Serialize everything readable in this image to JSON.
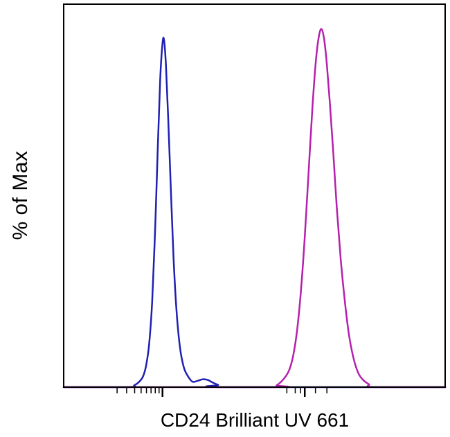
{
  "figure": {
    "background": "#ffffff",
    "axis_color": "#000000"
  },
  "chart_data": {
    "type": "line",
    "subtype": "flow-cytometry-histogram-overlay",
    "title": "",
    "xlabel": "CD24 Brilliant UV 661",
    "ylabel": "% of Max",
    "ylim": [
      0,
      100
    ],
    "grid": false,
    "legend": null,
    "x_axis": {
      "scale": "log-biexponential",
      "tick_labels_visible": false,
      "ticks": [
        {
          "x": 0.14,
          "major": false
        },
        {
          "x": 0.165,
          "major": false
        },
        {
          "x": 0.186,
          "major": false
        },
        {
          "x": 0.203,
          "major": false
        },
        {
          "x": 0.217,
          "major": false
        },
        {
          "x": 0.229,
          "major": false
        },
        {
          "x": 0.24,
          "major": false
        },
        {
          "x": 0.25,
          "major": false
        },
        {
          "x": 0.259,
          "major": true
        },
        {
          "x": 0.585,
          "major": false
        },
        {
          "x": 0.607,
          "major": false
        },
        {
          "x": 0.621,
          "major": false
        },
        {
          "x": 0.632,
          "major": true
        },
        {
          "x": 0.66,
          "major": false
        },
        {
          "x": 0.69,
          "major": false
        }
      ]
    },
    "series": [
      {
        "name": "blue",
        "color": "#2020b2",
        "points": [
          [
            0.0,
            0
          ],
          [
            0.17,
            0
          ],
          [
            0.185,
            0.5
          ],
          [
            0.198,
            1.5
          ],
          [
            0.208,
            3
          ],
          [
            0.216,
            6
          ],
          [
            0.224,
            12
          ],
          [
            0.232,
            24
          ],
          [
            0.24,
            45
          ],
          [
            0.247,
            68
          ],
          [
            0.253,
            86
          ],
          [
            0.259,
            96
          ],
          [
            0.263,
            97
          ],
          [
            0.268,
            90
          ],
          [
            0.274,
            75
          ],
          [
            0.281,
            55
          ],
          [
            0.288,
            36
          ],
          [
            0.296,
            21
          ],
          [
            0.305,
            11
          ],
          [
            0.315,
            5.5
          ],
          [
            0.326,
            3
          ],
          [
            0.338,
            1.5
          ],
          [
            0.352,
            1.8
          ],
          [
            0.365,
            2.2
          ],
          [
            0.378,
            2.0
          ],
          [
            0.392,
            1.2
          ],
          [
            0.405,
            0.6
          ],
          [
            0.42,
            0
          ],
          [
            1.0,
            0
          ]
        ]
      },
      {
        "name": "magenta",
        "color": "#b520ae",
        "points": [
          [
            0.0,
            0
          ],
          [
            0.545,
            0
          ],
          [
            0.558,
            0.5
          ],
          [
            0.57,
            1.5
          ],
          [
            0.582,
            3
          ],
          [
            0.592,
            5
          ],
          [
            0.602,
            9
          ],
          [
            0.612,
            16
          ],
          [
            0.622,
            27
          ],
          [
            0.632,
            42
          ],
          [
            0.642,
            60
          ],
          [
            0.652,
            78
          ],
          [
            0.661,
            91
          ],
          [
            0.669,
            98
          ],
          [
            0.676,
            100
          ],
          [
            0.683,
            97
          ],
          [
            0.69,
            90
          ],
          [
            0.698,
            79
          ],
          [
            0.707,
            65
          ],
          [
            0.716,
            50
          ],
          [
            0.726,
            36
          ],
          [
            0.737,
            24
          ],
          [
            0.748,
            14.5
          ],
          [
            0.76,
            8
          ],
          [
            0.772,
            4
          ],
          [
            0.785,
            2
          ],
          [
            0.8,
            0.8
          ],
          [
            0.815,
            0
          ],
          [
            1.0,
            0
          ]
        ]
      }
    ]
  }
}
